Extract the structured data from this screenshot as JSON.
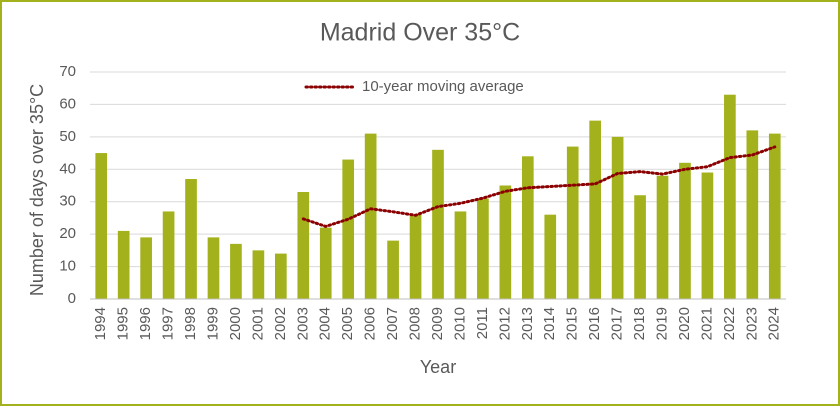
{
  "chart_data": {
    "type": "bar",
    "title": "Madrid Over 35°C",
    "x_label": "Year",
    "y_label": "Number of days over 35°C",
    "categories": [
      "1994",
      "1995",
      "1996",
      "1997",
      "1998",
      "1999",
      "2000",
      "2001",
      "2002",
      "2003",
      "2004",
      "2005",
      "2006",
      "2007",
      "2008",
      "2009",
      "2010",
      "2011",
      "2012",
      "2013",
      "2014",
      "2015",
      "2016",
      "2017",
      "2018",
      "2019",
      "2020",
      "2021",
      "2022",
      "2023",
      "2024"
    ],
    "values": [
      45,
      21,
      19,
      27,
      37,
      19,
      17,
      15,
      14,
      33,
      22,
      43,
      51,
      18,
      26,
      46,
      27,
      31,
      35,
      44,
      26,
      47,
      55,
      50,
      32,
      38,
      42,
      39,
      63,
      52,
      51
    ],
    "color": "#a3b21c",
    "series": [
      {
        "name": "10-year moving average",
        "type": "line",
        "color": "#8b0000",
        "values": [
          null,
          null,
          null,
          null,
          null,
          null,
          null,
          null,
          null,
          24.7,
          22.4,
          24.6,
          27.8,
          26.9,
          25.8,
          28.5,
          29.5,
          31.1,
          33.2,
          34.3,
          34.7,
          35.1,
          35.5,
          38.7,
          39.3,
          38.5,
          40,
          40.8,
          43.6,
          44.4,
          46.9
        ]
      }
    ],
    "ylim": [
      0,
      70
    ],
    "yticks": [
      0,
      10,
      20,
      30,
      40,
      50,
      60,
      70
    ],
    "grid": true,
    "legend": "top"
  }
}
